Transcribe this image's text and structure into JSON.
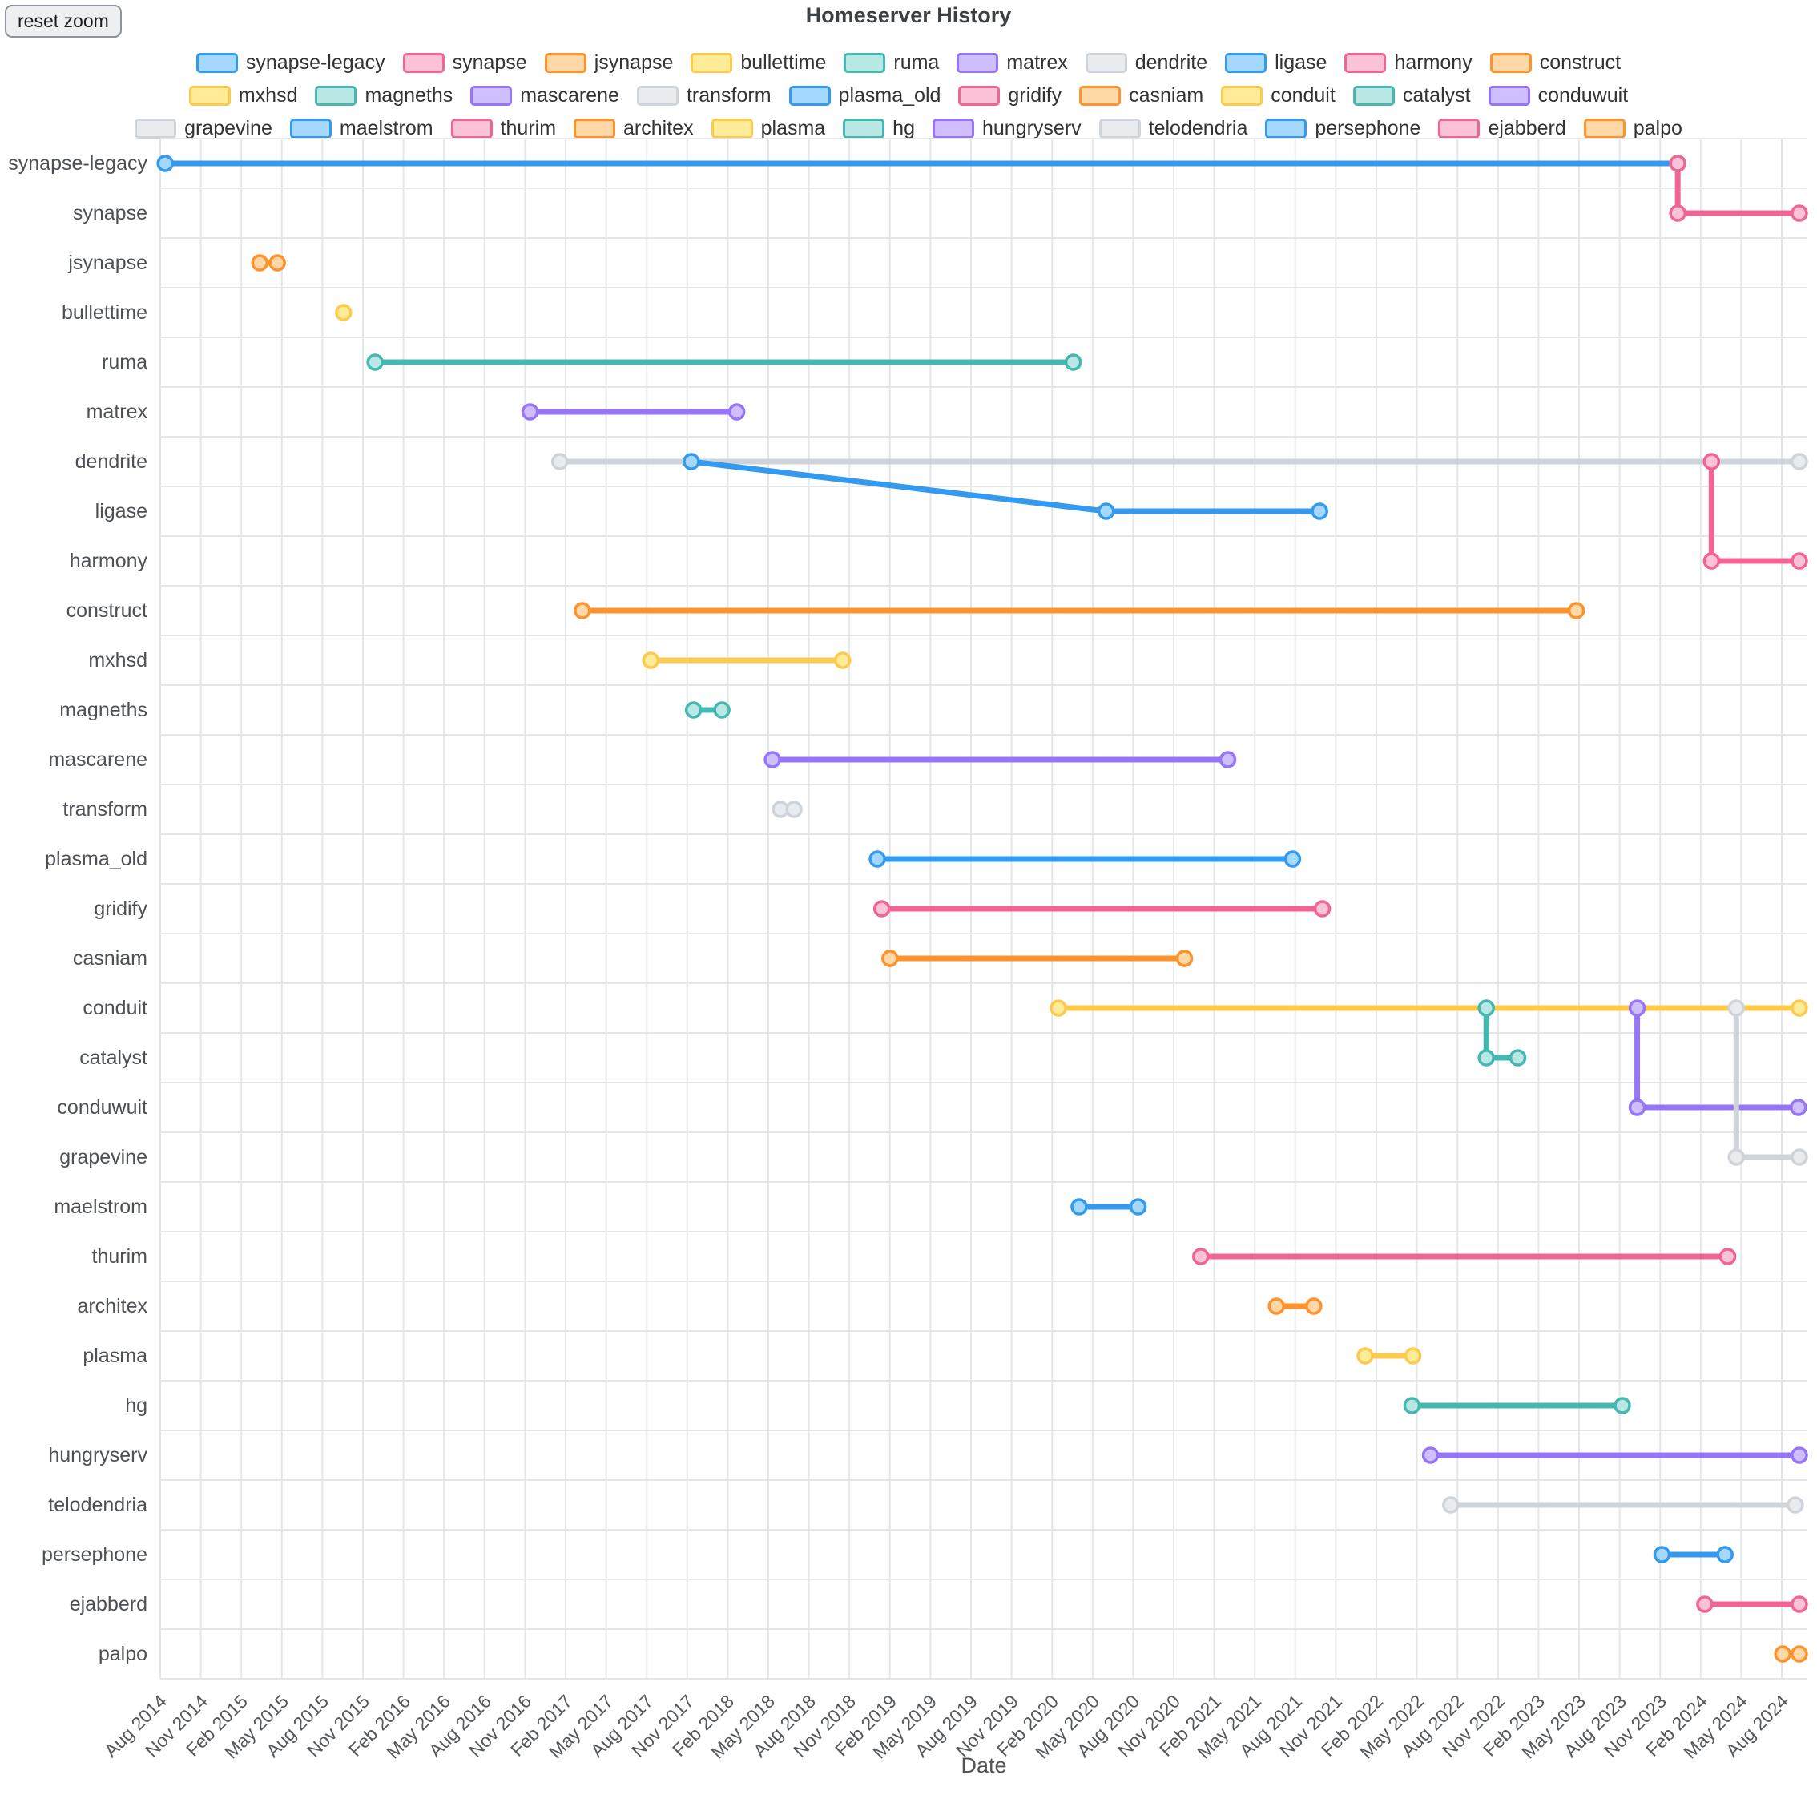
{
  "header": {
    "reset_zoom_label": "reset zoom"
  },
  "chart_data": {
    "type": "line",
    "title": "Homeserver History",
    "xlabel": "Date",
    "legend_position": "top",
    "grid": true,
    "x_range": [
      "2014-08",
      "2024-09"
    ],
    "x_tick_labels": [
      "Aug 2014",
      "Nov 2014",
      "Feb 2015",
      "May 2015",
      "Aug 2015",
      "Nov 2015",
      "Feb 2016",
      "May 2016",
      "Aug 2016",
      "Nov 2016",
      "Feb 2017",
      "May 2017",
      "Aug 2017",
      "Nov 2017",
      "Feb 2018",
      "May 2018",
      "Aug 2018",
      "Nov 2018",
      "Feb 2019",
      "May 2019",
      "Aug 2019",
      "Nov 2019",
      "Feb 2020",
      "May 2020",
      "Aug 2020",
      "Nov 2020",
      "Feb 2021",
      "May 2021",
      "Aug 2021",
      "Nov 2021",
      "Feb 2022",
      "May 2022",
      "Aug 2022",
      "Nov 2022",
      "Feb 2023",
      "May 2023",
      "Aug 2023",
      "Nov 2023",
      "Feb 2024",
      "May 2024",
      "Aug 2024"
    ],
    "row_labels": [
      "synapse-legacy",
      "synapse",
      "jsynapse",
      "bullettime",
      "ruma",
      "matrex",
      "dendrite",
      "ligase",
      "harmony",
      "construct",
      "mxhsd",
      "magneths",
      "mascarene",
      "transform",
      "plasma_old",
      "gridify",
      "casniam",
      "conduit",
      "catalyst",
      "conduwuit",
      "grapevine",
      "maelstrom",
      "thurim",
      "architex",
      "plasma",
      "hg",
      "hungryserv",
      "telodendria",
      "persephone",
      "ejabberd",
      "palpo"
    ],
    "palette": {
      "blue": {
        "line": "#339af0",
        "fill": "#a5d8ff"
      },
      "pink": {
        "line": "#f06595",
        "fill": "#fcc2d7"
      },
      "orange": {
        "line": "#ff922b",
        "fill": "#ffd8a8"
      },
      "yellow": {
        "line": "#fcca4c",
        "fill": "#ffec99"
      },
      "teal": {
        "line": "#45b8b1",
        "fill": "#b9e7e3"
      },
      "violet": {
        "line": "#9775fa",
        "fill": "#d0bfff"
      },
      "gray": {
        "line": "#ced4da",
        "fill": "#e9ecef"
      }
    },
    "legend_rows": [
      [
        "synapse-legacy",
        "synapse",
        "jsynapse",
        "bullettime",
        "ruma",
        "matrex",
        "dendrite",
        "ligase",
        "harmony",
        "construct"
      ],
      [
        "mxhsd",
        "magneths",
        "mascarene",
        "transform",
        "plasma_old",
        "gridify",
        "casniam",
        "conduit",
        "catalyst",
        "conduwuit"
      ],
      [
        "grapevine",
        "maelstrom",
        "thurim",
        "architex",
        "plasma",
        "hg",
        "hungryserv",
        "telodendria",
        "persephone",
        "ejabberd",
        "palpo"
      ]
    ],
    "series": [
      {
        "name": "synapse-legacy",
        "color": "blue",
        "points": [
          {
            "date": "2014-08-12",
            "row": "synapse-legacy"
          },
          {
            "date": "2023-12-10",
            "row": "synapse-legacy"
          }
        ]
      },
      {
        "name": "synapse",
        "color": "pink",
        "points": [
          {
            "date": "2023-12-10",
            "row": "synapse-legacy"
          },
          {
            "date": "2023-12-10",
            "row": "synapse"
          },
          {
            "date": "2024-09-10",
            "row": "synapse"
          }
        ]
      },
      {
        "name": "jsynapse",
        "color": "orange",
        "points": [
          {
            "date": "2015-03-12",
            "row": "jsynapse"
          },
          {
            "date": "2015-04-21",
            "row": "jsynapse"
          }
        ]
      },
      {
        "name": "bullettime",
        "color": "yellow",
        "points": [
          {
            "date": "2015-09-18",
            "row": "bullettime"
          }
        ]
      },
      {
        "name": "ruma",
        "color": "teal",
        "points": [
          {
            "date": "2015-11-28",
            "row": "ruma"
          },
          {
            "date": "2020-03-18",
            "row": "ruma"
          }
        ]
      },
      {
        "name": "matrex",
        "color": "violet",
        "points": [
          {
            "date": "2016-11-12",
            "row": "matrex"
          },
          {
            "date": "2018-02-21",
            "row": "matrex"
          }
        ]
      },
      {
        "name": "dendrite",
        "color": "gray",
        "points": [
          {
            "date": "2017-01-18",
            "row": "dendrite"
          },
          {
            "date": "2024-09-10",
            "row": "dendrite"
          }
        ]
      },
      {
        "name": "ligase",
        "color": "blue",
        "points": [
          {
            "date": "2017-11-10",
            "row": "dendrite"
          },
          {
            "date": "2020-06-01",
            "row": "ligase"
          },
          {
            "date": "2021-09-25",
            "row": "ligase"
          }
        ]
      },
      {
        "name": "harmony",
        "color": "pink",
        "points": [
          {
            "date": "2024-02-25",
            "row": "dendrite"
          },
          {
            "date": "2024-02-25",
            "row": "harmony"
          },
          {
            "date": "2024-09-10",
            "row": "harmony"
          }
        ]
      },
      {
        "name": "construct",
        "color": "orange",
        "points": [
          {
            "date": "2017-03-08",
            "row": "construct"
          },
          {
            "date": "2023-04-25",
            "row": "construct"
          }
        ]
      },
      {
        "name": "mxhsd",
        "color": "yellow",
        "points": [
          {
            "date": "2017-08-10",
            "row": "mxhsd"
          },
          {
            "date": "2018-10-16",
            "row": "mxhsd"
          }
        ]
      },
      {
        "name": "magneths",
        "color": "teal",
        "points": [
          {
            "date": "2017-11-15",
            "row": "magneths"
          },
          {
            "date": "2018-01-18",
            "row": "magneths"
          }
        ]
      },
      {
        "name": "mascarene",
        "color": "violet",
        "points": [
          {
            "date": "2018-05-10",
            "row": "mascarene"
          },
          {
            "date": "2021-03-01",
            "row": "mascarene"
          }
        ]
      },
      {
        "name": "transform",
        "color": "gray",
        "points": [
          {
            "date": "2018-05-28",
            "row": "transform"
          },
          {
            "date": "2018-06-28",
            "row": "transform"
          }
        ]
      },
      {
        "name": "plasma_old",
        "color": "blue",
        "points": [
          {
            "date": "2019-01-03",
            "row": "plasma_old"
          },
          {
            "date": "2021-07-25",
            "row": "plasma_old"
          }
        ]
      },
      {
        "name": "gridify",
        "color": "pink",
        "points": [
          {
            "date": "2019-01-13",
            "row": "gridify"
          },
          {
            "date": "2021-10-01",
            "row": "gridify"
          }
        ]
      },
      {
        "name": "casniam",
        "color": "orange",
        "points": [
          {
            "date": "2019-02-01",
            "row": "casniam"
          },
          {
            "date": "2020-11-25",
            "row": "casniam"
          }
        ]
      },
      {
        "name": "conduit",
        "color": "yellow",
        "points": [
          {
            "date": "2020-02-15",
            "row": "conduit"
          },
          {
            "date": "2024-09-10",
            "row": "conduit"
          }
        ]
      },
      {
        "name": "catalyst",
        "color": "teal",
        "points": [
          {
            "date": "2022-10-05",
            "row": "conduit"
          },
          {
            "date": "2022-10-05",
            "row": "catalyst"
          },
          {
            "date": "2022-12-15",
            "row": "catalyst"
          }
        ]
      },
      {
        "name": "conduwuit",
        "color": "violet",
        "points": [
          {
            "date": "2023-09-10",
            "row": "conduit"
          },
          {
            "date": "2023-09-10",
            "row": "conduwuit"
          },
          {
            "date": "2024-09-08",
            "row": "conduwuit"
          }
        ]
      },
      {
        "name": "grapevine",
        "color": "gray",
        "points": [
          {
            "date": "2024-04-20",
            "row": "conduit"
          },
          {
            "date": "2024-04-20",
            "row": "grapevine"
          },
          {
            "date": "2024-09-10",
            "row": "grapevine"
          }
        ]
      },
      {
        "name": "maelstrom",
        "color": "blue",
        "points": [
          {
            "date": "2020-04-01",
            "row": "maelstrom"
          },
          {
            "date": "2020-08-12",
            "row": "maelstrom"
          }
        ]
      },
      {
        "name": "thurim",
        "color": "pink",
        "points": [
          {
            "date": "2021-01-01",
            "row": "thurim"
          },
          {
            "date": "2024-04-01",
            "row": "thurim"
          }
        ]
      },
      {
        "name": "architex",
        "color": "orange",
        "points": [
          {
            "date": "2021-06-19",
            "row": "architex"
          },
          {
            "date": "2021-09-12",
            "row": "architex"
          }
        ]
      },
      {
        "name": "plasma",
        "color": "yellow",
        "points": [
          {
            "date": "2022-01-06",
            "row": "plasma"
          },
          {
            "date": "2022-04-22",
            "row": "plasma"
          }
        ]
      },
      {
        "name": "hg",
        "color": "teal",
        "points": [
          {
            "date": "2022-04-20",
            "row": "hg"
          },
          {
            "date": "2023-08-07",
            "row": "hg"
          }
        ]
      },
      {
        "name": "hungryserv",
        "color": "violet",
        "points": [
          {
            "date": "2022-06-01",
            "row": "hungryserv"
          },
          {
            "date": "2024-09-10",
            "row": "hungryserv"
          }
        ]
      },
      {
        "name": "telodendria",
        "color": "gray",
        "points": [
          {
            "date": "2022-07-16",
            "row": "telodendria"
          },
          {
            "date": "2024-09-01",
            "row": "telodendria"
          }
        ]
      },
      {
        "name": "persephone",
        "color": "blue",
        "points": [
          {
            "date": "2023-11-05",
            "row": "persephone"
          },
          {
            "date": "2024-03-25",
            "row": "persephone"
          }
        ]
      },
      {
        "name": "ejabberd",
        "color": "pink",
        "points": [
          {
            "date": "2024-02-10",
            "row": "ejabberd"
          },
          {
            "date": "2024-09-10",
            "row": "ejabberd"
          }
        ]
      },
      {
        "name": "palpo",
        "color": "orange",
        "points": [
          {
            "date": "2024-08-03",
            "row": "palpo"
          },
          {
            "date": "2024-09-10",
            "row": "palpo"
          }
        ]
      }
    ]
  }
}
